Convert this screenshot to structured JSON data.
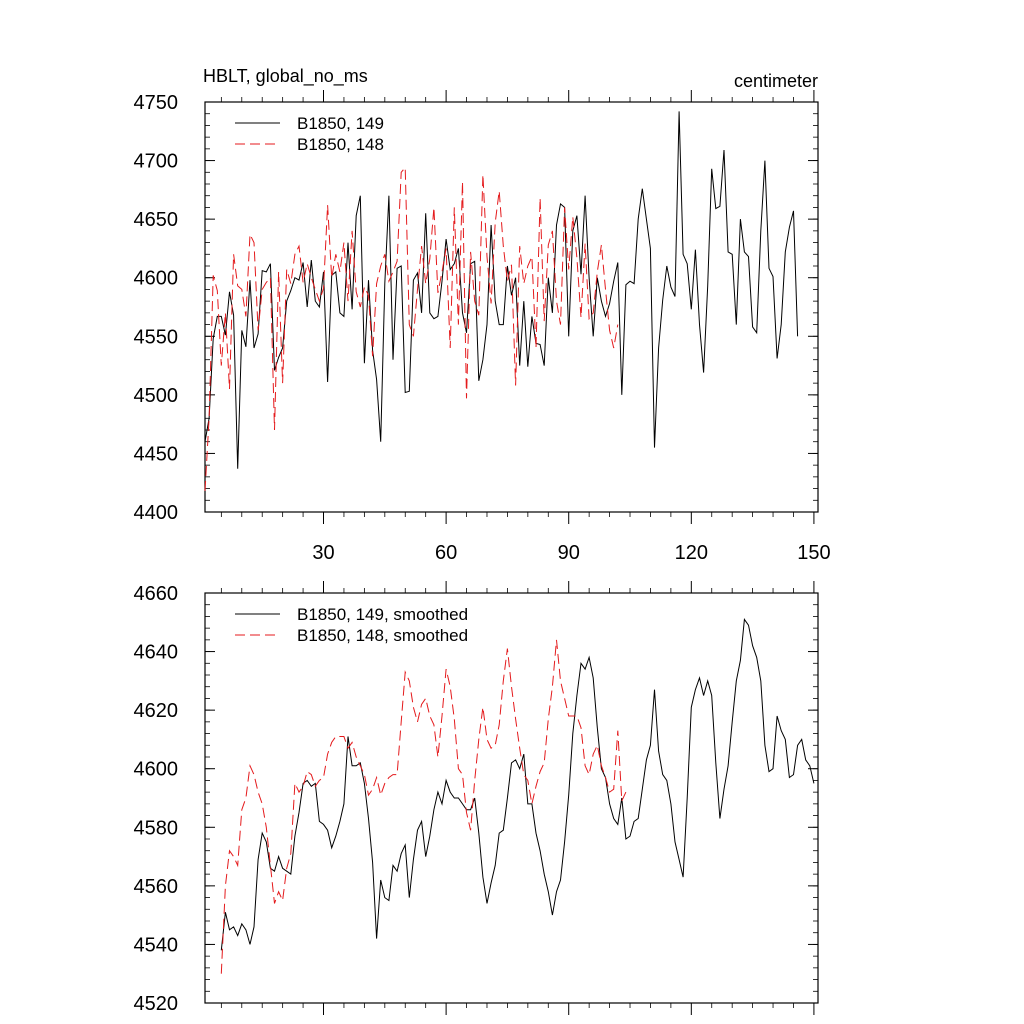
{
  "header": {
    "left_title": "HBLT, global_no_ms",
    "right_title": "centimeter"
  },
  "chart_data": [
    {
      "type": "line",
      "xlim": [
        1,
        151
      ],
      "ylim": [
        4400,
        4750
      ],
      "xticks": [
        30,
        60,
        90,
        120,
        150
      ],
      "yticks": [
        4400,
        4450,
        4500,
        4550,
        4600,
        4650,
        4700,
        4750
      ],
      "x_tick_labels_shown": true,
      "legend_position": "top-left",
      "series": [
        {
          "name": "B1850, 149",
          "color": "#000000",
          "dash": "solid",
          "x_start": 1,
          "values": [
            4460,
            4480,
            4548,
            4567,
            4567,
            4551,
            4588,
            4568,
            4437,
            4555,
            4541,
            4598,
            4540,
            4552,
            4606,
            4605,
            4612,
            4521,
            4532,
            4540,
            4580,
            4589,
            4600,
            4598,
            4613,
            4575,
            4615,
            4580,
            4575,
            4605,
            4511,
            4602,
            4605,
            4570,
            4567,
            4630,
            4573,
            4653,
            4670,
            4527,
            4598,
            4538,
            4513,
            4460,
            4595,
            4670,
            4530,
            4608,
            4610,
            4502,
            4503,
            4598,
            4604,
            4570,
            4655,
            4570,
            4565,
            4567,
            4597,
            4633,
            4607,
            4612,
            4625,
            4570,
            4553,
            4612,
            4614,
            4512,
            4530,
            4560,
            4645,
            4580,
            4560,
            4560,
            4610,
            4585,
            4600,
            4525,
            4580,
            4524,
            4567,
            4544,
            4543,
            4525,
            4600,
            4570,
            4645,
            4663,
            4660,
            4550,
            4640,
            4653,
            4603,
            4670,
            4600,
            4550,
            4600,
            4580,
            4567,
            4578,
            4597,
            4613,
            4500,
            4594,
            4597,
            4595,
            4650,
            4676,
            4650,
            4625,
            4455,
            4540,
            4581,
            4610,
            4592,
            4584,
            4742,
            4620,
            4612,
            4573,
            4624,
            4560,
            4519,
            4593,
            4693,
            4659,
            4661,
            4709,
            4622,
            4620,
            4560,
            4650,
            4622,
            4618,
            4558,
            4553,
            4640,
            4700,
            4608,
            4601,
            4531,
            4560,
            4622,
            4643,
            4657,
            4550
          ]
        },
        {
          "name": "B1850, 148",
          "color": "#e41a1c",
          "dash": "dashed",
          "x_start": 1,
          "values": [
            4418,
            4480,
            4602,
            4589,
            4525,
            4570,
            4505,
            4620,
            4593,
            4590,
            4567,
            4637,
            4630,
            4555,
            4590,
            4596,
            4600,
            4470,
            4605,
            4510,
            4607,
            4595,
            4620,
            4627,
            4596,
            4612,
            4600,
            4590,
            4580,
            4591,
            4662,
            4600,
            4620,
            4605,
            4630,
            4580,
            4640,
            4588,
            4575,
            4592,
            4585,
            4533,
            4595,
            4610,
            4620,
            4597,
            4605,
            4614,
            4690,
            4694,
            4560,
            4550,
            4590,
            4627,
            4595,
            4616,
            4660,
            4587,
            4605,
            4625,
            4540,
            4660,
            4560,
            4682,
            4497,
            4622,
            4580,
            4568,
            4688,
            4618,
            4578,
            4647,
            4674,
            4627,
            4597,
            4611,
            4508,
            4627,
            4595,
            4610,
            4618,
            4540,
            4668,
            4563,
            4628,
            4640,
            4580,
            4560,
            4660,
            4607,
            4652,
            4617,
            4566,
            4629,
            4565,
            4570,
            4605,
            4628,
            4590,
            4555,
            4540,
            4560
          ]
        }
      ]
    },
    {
      "type": "line",
      "xlim": [
        1,
        151
      ],
      "ylim": [
        4520,
        4660
      ],
      "xticks": [
        30,
        60,
        90,
        120,
        150
      ],
      "yticks": [
        4520,
        4540,
        4560,
        4580,
        4600,
        4620,
        4640,
        4660
      ],
      "x_tick_labels_shown": false,
      "legend_position": "top-left",
      "series": [
        {
          "name": "B1850, 149, smoothed",
          "color": "#000000",
          "dash": "solid",
          "x_start": 5,
          "values": [
            4538,
            4551,
            4545,
            4546,
            4543,
            4547,
            4545,
            4540,
            4546,
            4569,
            4578,
            4575,
            4566,
            4565,
            4570,
            4566,
            4565,
            4564,
            4577,
            4585,
            4595,
            4596,
            4594,
            4595,
            4582,
            4581,
            4579,
            4573,
            4577,
            4582,
            4588,
            4611,
            4601,
            4601,
            4602,
            4595,
            4583,
            4568,
            4542,
            4562,
            4556,
            4555,
            4567,
            4565,
            4571,
            4574,
            4556,
            4569,
            4579,
            4582,
            4570,
            4577,
            4586,
            4592,
            4588,
            4596,
            4592,
            4590,
            4590,
            4588,
            4586,
            4586,
            4590,
            4578,
            4563,
            4554,
            4561,
            4567,
            4578,
            4579,
            4590,
            4602,
            4603,
            4600,
            4605,
            4588,
            4588,
            4578,
            4572,
            4564,
            4558,
            4550,
            4558,
            4562,
            4575,
            4591,
            4612,
            4625,
            4636,
            4634,
            4638,
            4631,
            4614,
            4600,
            4597,
            4588,
            4583,
            4581,
            4590,
            4576,
            4577,
            4582,
            4583,
            4593,
            4603,
            4608,
            4627,
            4606,
            4598,
            4596,
            4588,
            4575,
            4569,
            4563,
            4590,
            4621,
            4627,
            4631,
            4625,
            4630,
            4625,
            4602,
            4583,
            4593,
            4601,
            4616,
            4630,
            4637,
            4651,
            4649,
            4642,
            4638,
            4630,
            4608,
            4599,
            4600,
            4618,
            4613,
            4610,
            4597,
            4598,
            4608,
            4610,
            4603,
            4601,
            4595
          ]
        },
        {
          "name": "B1850, 148, smoothed",
          "color": "#e41a1c",
          "dash": "dashed",
          "x_start": 5,
          "values": [
            4530,
            4560,
            4572,
            4570,
            4567,
            4586,
            4590,
            4601,
            4598,
            4592,
            4588,
            4580,
            4567,
            4554,
            4558,
            4555,
            4566,
            4571,
            4595,
            4592,
            4594,
            4599,
            4598,
            4594,
            4596,
            4597,
            4605,
            4609,
            4611,
            4611,
            4611,
            4607,
            4609,
            4604,
            4601,
            4598,
            4591,
            4593,
            4597,
            4591,
            4595,
            4597,
            4598,
            4598,
            4616,
            4633,
            4630,
            4621,
            4616,
            4622,
            4624,
            4618,
            4615,
            4604,
            4618,
            4634,
            4628,
            4617,
            4600,
            4598,
            4585,
            4579,
            4596,
            4610,
            4621,
            4610,
            4607,
            4608,
            4615,
            4630,
            4641,
            4628,
            4617,
            4607,
            4598,
            4596,
            4588,
            4594,
            4599,
            4602,
            4617,
            4628,
            4644,
            4630,
            4624,
            4618,
            4618,
            4618,
            4614,
            4601,
            4598,
            4605,
            4608,
            4601,
            4597,
            4592,
            4593,
            4613,
            4589,
            4592
          ]
        }
      ]
    }
  ]
}
